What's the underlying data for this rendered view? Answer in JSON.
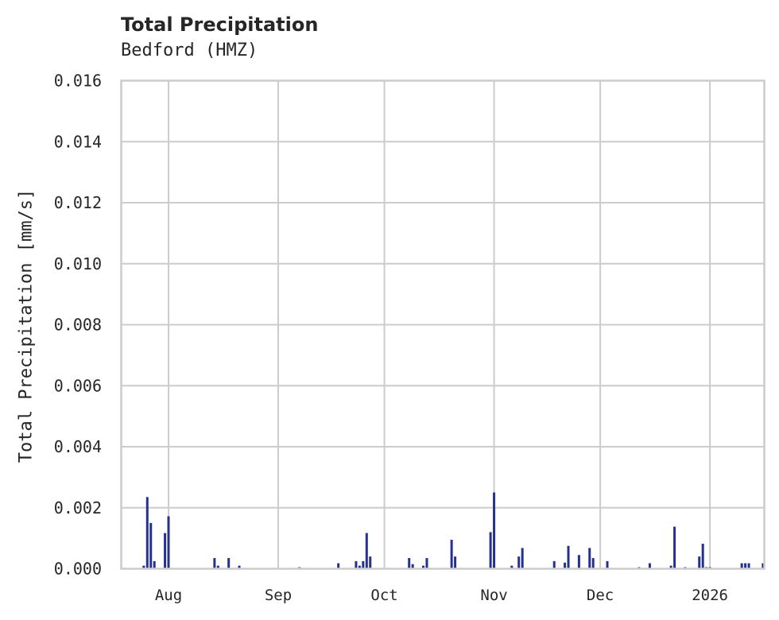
{
  "header": {
    "title": "Total Precipitation",
    "subtitle": "Bedford (HMZ)"
  },
  "colors": {
    "bar": "#25318f",
    "grid": "#cccccc",
    "axis": "#cccccc",
    "text": "#262626"
  },
  "chart_data": {
    "type": "bar",
    "title": "Total Precipitation",
    "subtitle": "Bedford (HMZ)",
    "xlabel": "",
    "ylabel": "Total Precipitation [mm/s]",
    "ylim": [
      0,
      0.016
    ],
    "y_ticks": [
      "0.000",
      "0.002",
      "0.004",
      "0.006",
      "0.008",
      "0.010",
      "0.012",
      "0.014",
      "0.016"
    ],
    "x_ticks": [
      "Aug",
      "Sep",
      "Oct",
      "Nov",
      "Dec",
      "2026"
    ],
    "xlim": [
      "2025-07-18",
      "2026-01-07"
    ],
    "grid": true,
    "legend": "none",
    "series": [
      {
        "name": "Total Precipitation",
        "points": [
          {
            "date": "2025-07-25",
            "value": 0.0001
          },
          {
            "date": "2025-07-26",
            "value": 0.00235
          },
          {
            "date": "2025-07-27",
            "value": 0.0015
          },
          {
            "date": "2025-07-28",
            "value": 0.00025
          },
          {
            "date": "2025-07-31",
            "value": 0.00117
          },
          {
            "date": "2025-08-01",
            "value": 0.00172
          },
          {
            "date": "2025-08-14",
            "value": 0.00035
          },
          {
            "date": "2025-08-15",
            "value": 0.0001
          },
          {
            "date": "2025-08-18",
            "value": 0.00035
          },
          {
            "date": "2025-08-21",
            "value": 0.0001
          },
          {
            "date": "2025-09-07",
            "value": 5e-05
          },
          {
            "date": "2025-09-18",
            "value": 0.00018
          },
          {
            "date": "2025-09-23",
            "value": 0.00025
          },
          {
            "date": "2025-09-24",
            "value": 0.0001
          },
          {
            "date": "2025-09-25",
            "value": 0.00025
          },
          {
            "date": "2025-09-26",
            "value": 0.00117
          },
          {
            "date": "2025-09-27",
            "value": 0.0004
          },
          {
            "date": "2025-10-08",
            "value": 0.00035
          },
          {
            "date": "2025-10-09",
            "value": 0.00015
          },
          {
            "date": "2025-10-12",
            "value": 0.0001
          },
          {
            "date": "2025-10-13",
            "value": 0.00035
          },
          {
            "date": "2025-10-20",
            "value": 0.00095
          },
          {
            "date": "2025-10-21",
            "value": 0.0004
          },
          {
            "date": "2025-10-31",
            "value": 0.0012
          },
          {
            "date": "2025-11-01",
            "value": 0.0025
          },
          {
            "date": "2025-11-06",
            "value": 0.0001
          },
          {
            "date": "2025-11-08",
            "value": 0.0004
          },
          {
            "date": "2025-11-09",
            "value": 0.00068
          },
          {
            "date": "2025-11-18",
            "value": 0.00025
          },
          {
            "date": "2025-11-21",
            "value": 0.0002
          },
          {
            "date": "2025-11-22",
            "value": 0.00075
          },
          {
            "date": "2025-11-25",
            "value": 0.00045
          },
          {
            "date": "2025-11-28",
            "value": 0.00068
          },
          {
            "date": "2025-11-29",
            "value": 0.00035
          },
          {
            "date": "2025-12-03",
            "value": 0.00025
          },
          {
            "date": "2025-12-12",
            "value": 5e-05
          },
          {
            "date": "2025-12-15",
            "value": 0.00018
          },
          {
            "date": "2025-12-21",
            "value": 0.0001
          },
          {
            "date": "2025-12-22",
            "value": 0.00138
          },
          {
            "date": "2025-12-25",
            "value": 5e-05
          },
          {
            "date": "2025-12-29",
            "value": 0.0004
          },
          {
            "date": "2025-12-30",
            "value": 0.00082
          },
          {
            "date": "2025-12-31",
            "value": 5e-05
          },
          {
            "date": "2026-01-01",
            "value": 5e-05
          },
          {
            "date": "2026-01-10",
            "value": 0.00018
          },
          {
            "date": "2026-01-11",
            "value": 0.00018
          },
          {
            "date": "2026-01-12",
            "value": 0.00018
          },
          {
            "date": "2026-01-16",
            "value": 0.00018
          }
        ]
      }
    ]
  }
}
